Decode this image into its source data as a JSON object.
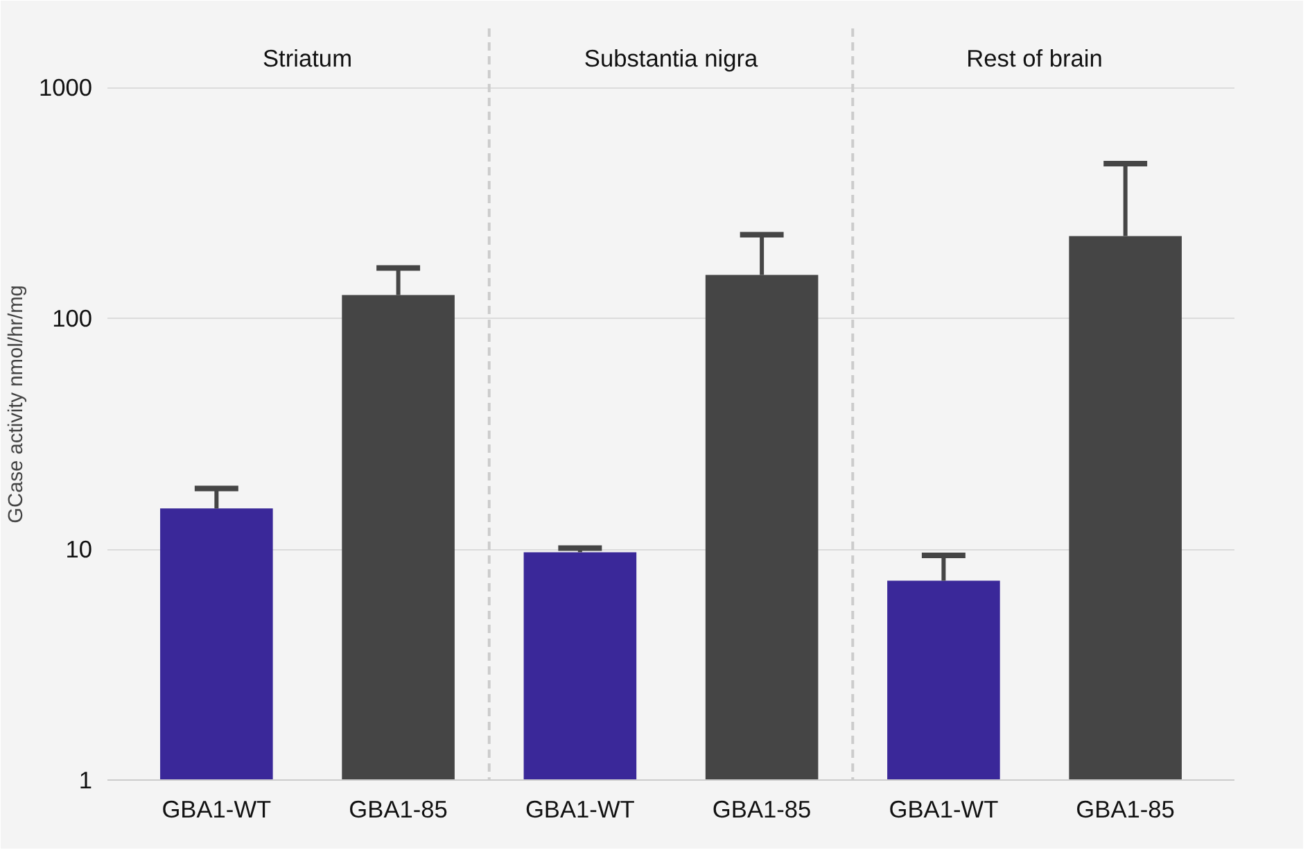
{
  "chart_data": {
    "type": "bar",
    "ylabel": "GCase activity nmol/hr/mg",
    "categories": [
      "GBA1-WT",
      "GBA1-85",
      "GBA1-WT",
      "GBA1-85",
      "GBA1-WT",
      "GBA1-85"
    ],
    "values": [
      15.0,
      126,
      9.7,
      154,
      7.3,
      227
    ],
    "errors": [
      [
        15.0,
        18.3
      ],
      [
        126,
        165
      ],
      [
        9.7,
        10.1
      ],
      [
        154,
        230
      ],
      [
        7.3,
        9.4
      ],
      [
        227,
        467
      ]
    ],
    "colors": [
      "#3a2899",
      "#454545",
      "#3a2899",
      "#454545",
      "#3a2899",
      "#454545"
    ],
    "log": true,
    "ylim": [
      1,
      1800
    ],
    "yticks": [
      1,
      10,
      100,
      1000
    ],
    "grid": "y",
    "annotations": [
      "Striatum",
      "Substantia nigra",
      "Rest of brain"
    ]
  }
}
